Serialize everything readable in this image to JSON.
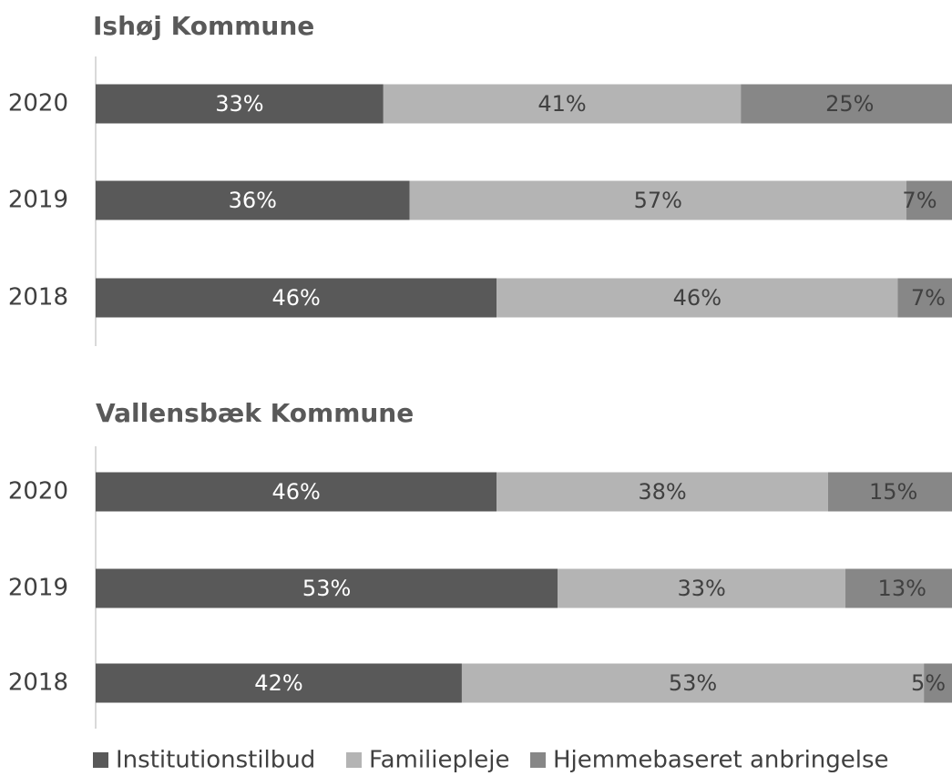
{
  "chart_data": [
    {
      "type": "stacked-bar-horizontal",
      "title": "Ishøj Kommune",
      "categories": [
        "2020",
        "2019",
        "2018"
      ],
      "xlim": [
        0,
        100
      ],
      "series": [
        {
          "color": "#595959",
          "values": [
            33,
            36,
            46
          ],
          "value_labels": [
            "33%",
            "36%",
            "46%"
          ]
        },
        {
          "color": "#b4b4b4",
          "values": [
            41,
            57,
            46
          ],
          "value_labels": [
            "41%",
            "57%",
            "46%"
          ]
        },
        {
          "color": "#878787",
          "values": [
            25,
            7,
            7
          ],
          "value_labels": [
            "25%",
            "7%",
            "7%"
          ]
        }
      ]
    },
    {
      "type": "stacked-bar-horizontal",
      "title": "Vallensbæk Kommune",
      "categories": [
        "2020",
        "2019",
        "2018"
      ],
      "xlim": [
        0,
        100
      ],
      "series": [
        {
          "name": "Institutionstilbud",
          "color": "#595959",
          "values": [
            46,
            53,
            42
          ],
          "value_labels": [
            "46%",
            "53%",
            "42%"
          ]
        },
        {
          "name": "Familiepleje",
          "color": "#b4b4b4",
          "values": [
            38,
            33,
            53
          ],
          "value_labels": [
            "38%",
            "33%",
            "53%"
          ]
        },
        {
          "name": "Hjemmebaseret anbringelse",
          "color": "#878787",
          "values": [
            15,
            13,
            5
          ],
          "value_labels": [
            "15%",
            "13%",
            "5%"
          ]
        }
      ]
    }
  ]
}
